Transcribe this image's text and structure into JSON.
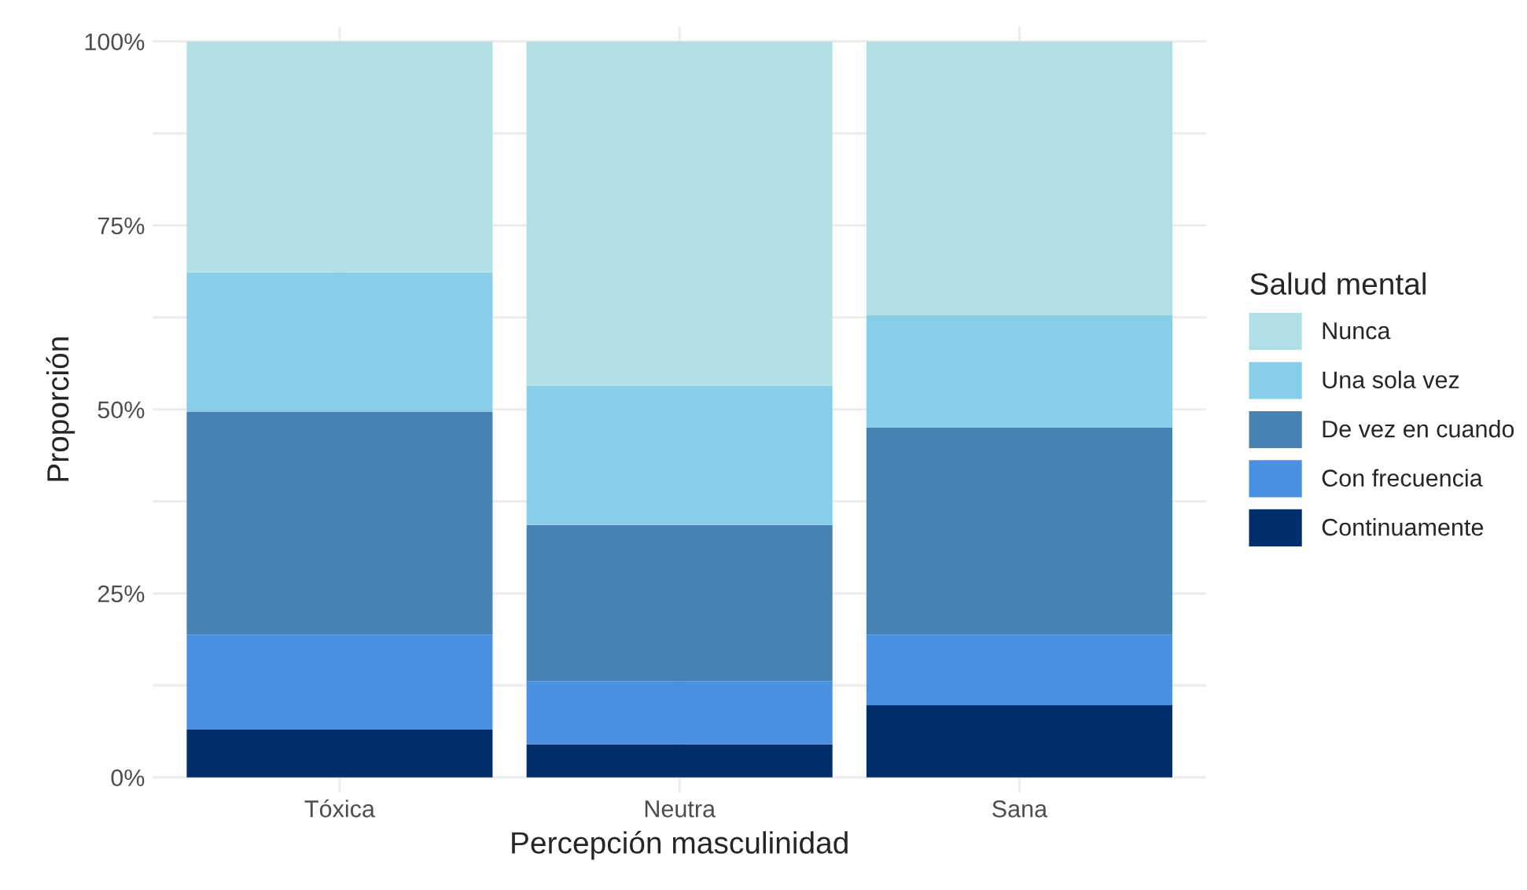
{
  "chart_data": {
    "type": "bar",
    "stacked": true,
    "xlabel": "Percepción masculinidad",
    "ylabel": "Proporción",
    "legend_title": "Salud mental",
    "legend": "right",
    "grid": true,
    "categories": [
      "Tóxica",
      "Neutra",
      "Sana"
    ],
    "series": [
      {
        "name": "Continuamente",
        "color": "#002d6b",
        "values": [
          6.5,
          4.5,
          9.8
        ]
      },
      {
        "name": "Con frecuencia",
        "color": "#4a90e2",
        "values": [
          12.9,
          8.6,
          9.6
        ]
      },
      {
        "name": "De vez en cuando",
        "color": "#4682b4",
        "values": [
          30.3,
          21.2,
          28.1
        ]
      },
      {
        "name": "Una sola vez",
        "color": "#87ceeb",
        "values": [
          18.9,
          18.9,
          15.3
        ]
      },
      {
        "name": "Nunca",
        "color": "#b0dfe5",
        "values": [
          31.4,
          46.8,
          37.2
        ]
      }
    ],
    "ylim": [
      -2,
      102
    ],
    "yticks": [
      {
        "value": 0,
        "label": "0%"
      },
      {
        "value": 12.5,
        "label": null
      },
      {
        "value": 25,
        "label": "25%"
      },
      {
        "value": 37.5,
        "label": null
      },
      {
        "value": 50,
        "label": "50%"
      },
      {
        "value": 62.5,
        "label": null
      },
      {
        "value": 75,
        "label": "75%"
      },
      {
        "value": 87.5,
        "label": null
      },
      {
        "value": 100,
        "label": "100%"
      }
    ]
  }
}
